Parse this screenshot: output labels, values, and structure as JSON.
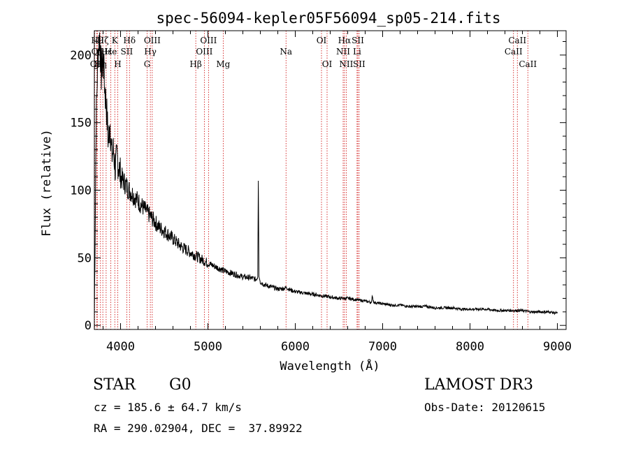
{
  "chart_data": {
    "type": "line",
    "title": "spec-56094-kepler05F56094_sp05-214.fits",
    "xlabel": "Wavelength (Å)",
    "ylabel": "Flux (relative)",
    "xlim": [
      3700,
      9100
    ],
    "ylim": [
      -3,
      218
    ],
    "xticks": [
      4000,
      5000,
      6000,
      7000,
      8000,
      9000
    ],
    "yticks": [
      0,
      50,
      100,
      150,
      200
    ],
    "grid": false,
    "series": [
      {
        "name": "spectrum",
        "x": [
          3700,
          3720,
          3740,
          3760,
          3780,
          3800,
          3820,
          3840,
          3860,
          3880,
          3900,
          3920,
          3940,
          3960,
          3980,
          4000,
          4050,
          4100,
          4150,
          4200,
          4250,
          4300,
          4350,
          4400,
          4450,
          4500,
          4550,
          4600,
          4650,
          4700,
          4750,
          4800,
          4850,
          4900,
          4950,
          5000,
          5100,
          5200,
          5300,
          5400,
          5500,
          5550,
          5570,
          5577,
          5584,
          5600,
          5650,
          5700,
          5750,
          5800,
          5850,
          5900,
          5950,
          6000,
          6100,
          6200,
          6300,
          6400,
          6500,
          6600,
          6700,
          6800,
          6870,
          6880,
          6900,
          7000,
          7100,
          7200,
          7300,
          7400,
          7500,
          7600,
          7700,
          7800,
          7900,
          8000,
          8100,
          8200,
          8300,
          8400,
          8500,
          8600,
          8700,
          8800,
          8900,
          9000
        ],
        "values": [
          5,
          150,
          200,
          215,
          185,
          200,
          175,
          160,
          135,
          150,
          125,
          130,
          115,
          125,
          118,
          110,
          105,
          100,
          96,
          92,
          88,
          84,
          80,
          76,
          72,
          70,
          67,
          64,
          61,
          58,
          56,
          54,
          52,
          50,
          48,
          46,
          43,
          40,
          38,
          36,
          35,
          34,
          36,
          107,
          36,
          32,
          30,
          29,
          28,
          27,
          27,
          28,
          26,
          25,
          24,
          23,
          22,
          21,
          20,
          20,
          19,
          18,
          17,
          21,
          17,
          16,
          15,
          15,
          14,
          14,
          14,
          13,
          13,
          13,
          12,
          12,
          12,
          12,
          11,
          11,
          11,
          11,
          10,
          10,
          10,
          9
        ]
      }
    ],
    "lines": [
      {
        "wavelength": 3704,
        "label": "O",
        "row": 2
      },
      {
        "wavelength": 3727,
        "label": "OII",
        "row": 3
      },
      {
        "wavelength": 3734,
        "label": "Hθ",
        "row": 1
      },
      {
        "wavelength": 3770,
        "label": "Hη",
        "row": 3
      },
      {
        "wavelength": 3797,
        "label": "Hζ",
        "row": 1
      },
      {
        "wavelength": 3835,
        "label": "Hε",
        "row": 2
      },
      {
        "wavelength": 3889,
        "label": "He",
        "row": 2
      },
      {
        "wavelength": 3934,
        "label": "K",
        "row": 1
      },
      {
        "wavelength": 3968,
        "label": "H",
        "row": 3
      },
      {
        "wavelength": 4071,
        "label": "SII",
        "row": 2
      },
      {
        "wavelength": 4102,
        "label": "Hδ",
        "row": 1
      },
      {
        "wavelength": 4304,
        "label": "G",
        "row": 3
      },
      {
        "wavelength": 4341,
        "label": "Hγ",
        "row": 2
      },
      {
        "wavelength": 4363,
        "label": "OIII",
        "row": 1
      },
      {
        "wavelength": 4861,
        "label": "Hβ",
        "row": 3
      },
      {
        "wavelength": 4959,
        "label": "OIII",
        "row": 2
      },
      {
        "wavelength": 5007,
        "label": "OIII",
        "row": 1
      },
      {
        "wavelength": 5175,
        "label": "Mg",
        "row": 3
      },
      {
        "wavelength": 5894,
        "label": "Na",
        "row": 2
      },
      {
        "wavelength": 6300,
        "label": "OI",
        "row": 1
      },
      {
        "wavelength": 6364,
        "label": "OI",
        "row": 3
      },
      {
        "wavelength": 6548,
        "label": "NII",
        "row": 2
      },
      {
        "wavelength": 6563,
        "label": "Hα",
        "row": 1
      },
      {
        "wavelength": 6583,
        "label": "NII",
        "row": 3
      },
      {
        "wavelength": 6707,
        "label": "Li",
        "row": 2
      },
      {
        "wavelength": 6716,
        "label": "SII",
        "row": 1
      },
      {
        "wavelength": 6731,
        "label": "SII",
        "row": 3
      },
      {
        "wavelength": 8498,
        "label": "CaII",
        "row": 2
      },
      {
        "wavelength": 8542,
        "label": "CaII",
        "row": 1
      },
      {
        "wavelength": 8662,
        "label": "CaII",
        "row": 3
      }
    ]
  },
  "info": {
    "classification": "STAR",
    "subclass": "G0",
    "survey": "LAMOST DR3",
    "redshift": "cz = 185.6 ± 64.7 km/s",
    "obs_date": "Obs-Date: 20120615",
    "coords": "RA = 290.02904, DEC =  37.89922"
  },
  "colors": {
    "line_marker": "#cc0000",
    "spectrum": "#000000"
  }
}
